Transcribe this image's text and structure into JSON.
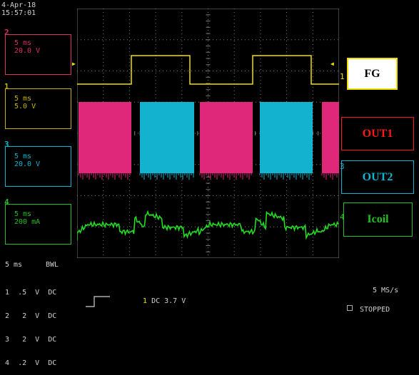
{
  "datetime": {
    "date": "4-Apr-18",
    "time": "15:57:01"
  },
  "channels": [
    {
      "num": "2",
      "time": "5 ms",
      "scale": "20.0 V",
      "color": "#d8306a"
    },
    {
      "num": "1",
      "time": "5 ms",
      "scale": "5.0 V",
      "color": "#c8b400"
    },
    {
      "num": "3",
      "time": "5 ms",
      "scale": "20.0 V",
      "color": "#13b3cf"
    },
    {
      "num": "4",
      "time": "5 ms",
      "scale": "200 mA",
      "color": "#22c022"
    }
  ],
  "trace_labels": [
    {
      "text": "FG",
      "color": "#000000",
      "border": "#f0e000",
      "marker": "1"
    },
    {
      "text": "OUT1",
      "color": "#ff1a1a",
      "border": "#ff1a1a",
      "marker": "2"
    },
    {
      "text": "OUT2",
      "color": "#13b3cf",
      "border": "#13b3cf",
      "marker": "3"
    },
    {
      "text": "Icoil",
      "color": "#22c022",
      "border": "#22c022",
      "marker": "4"
    }
  ],
  "bottom": {
    "timebase": "5 ms",
    "bwl": "BWL",
    "rows": [
      {
        "ch": "1",
        "scale": ".5",
        "unit": "V",
        "coupling": "DC"
      },
      {
        "ch": "2",
        "scale": "2",
        "unit": "V",
        "coupling": "DC"
      },
      {
        "ch": "3",
        "scale": "2",
        "unit": "V",
        "coupling": "DC"
      },
      {
        "ch": "4",
        "scale": ".2",
        "unit": "V",
        "coupling": "DC"
      }
    ],
    "trigger_channel": "1",
    "trigger_info": "DC 3.7 V",
    "sample_rate": "5 MS/s",
    "status": "STOPPED"
  },
  "colors": {
    "fg": "#f0e000",
    "out1": "#e0287a",
    "out2": "#13b3cf",
    "icoil": "#22dd22",
    "grid": "#7a7a7a"
  }
}
